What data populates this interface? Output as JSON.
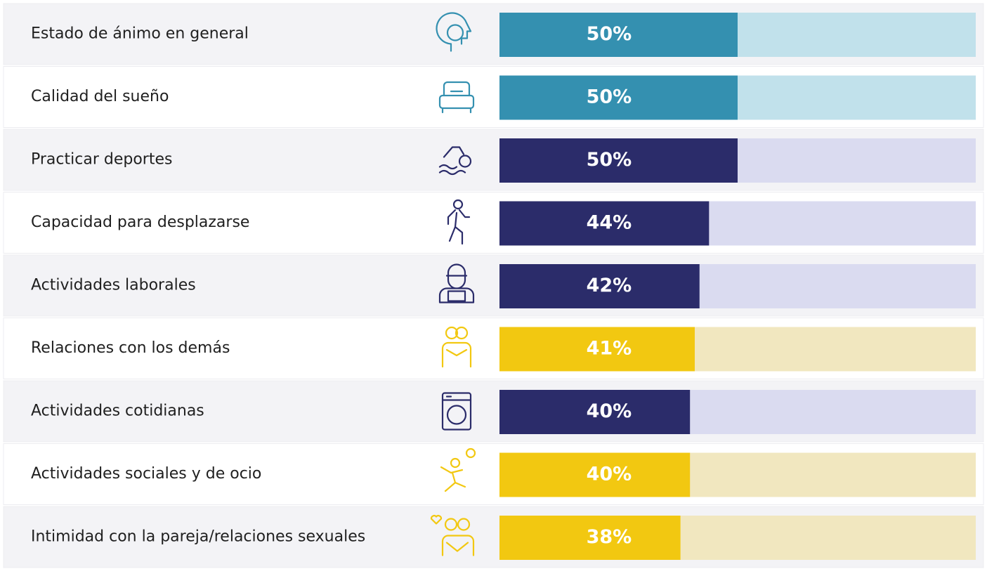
{
  "chart_data": {
    "type": "bar",
    "orientation": "horizontal",
    "categories": [
      "Estado de ánimo en general",
      "Calidad del sueño",
      "Practicar deportes",
      "Capacidad para desplazarse",
      "Actividades laborales",
      "Relaciones con los demás",
      "Actividades cotidianas",
      "Actividades sociales y de ocio",
      "Intimidad con la pareja/relaciones sexuales"
    ],
    "values": [
      50,
      50,
      50,
      44,
      42,
      41,
      40,
      40,
      38
    ],
    "value_labels": [
      "50%",
      "50%",
      "50%",
      "44%",
      "42%",
      "41%",
      "40%",
      "40%",
      "38%"
    ],
    "colors": [
      "#3490b0",
      "#3490b0",
      "#2b2c6a",
      "#2b2c6a",
      "#2b2c6a",
      "#f2c811",
      "#2b2c6a",
      "#f2c811",
      "#f2c811"
    ],
    "track_colors": [
      "#c1e1eb",
      "#c1e1eb",
      "#dadbf0",
      "#dadbf0",
      "#dadbf0",
      "#f1e7bf",
      "#dadbf0",
      "#f1e7bf",
      "#f1e7bf"
    ],
    "xlim": [
      0,
      100
    ]
  }
}
